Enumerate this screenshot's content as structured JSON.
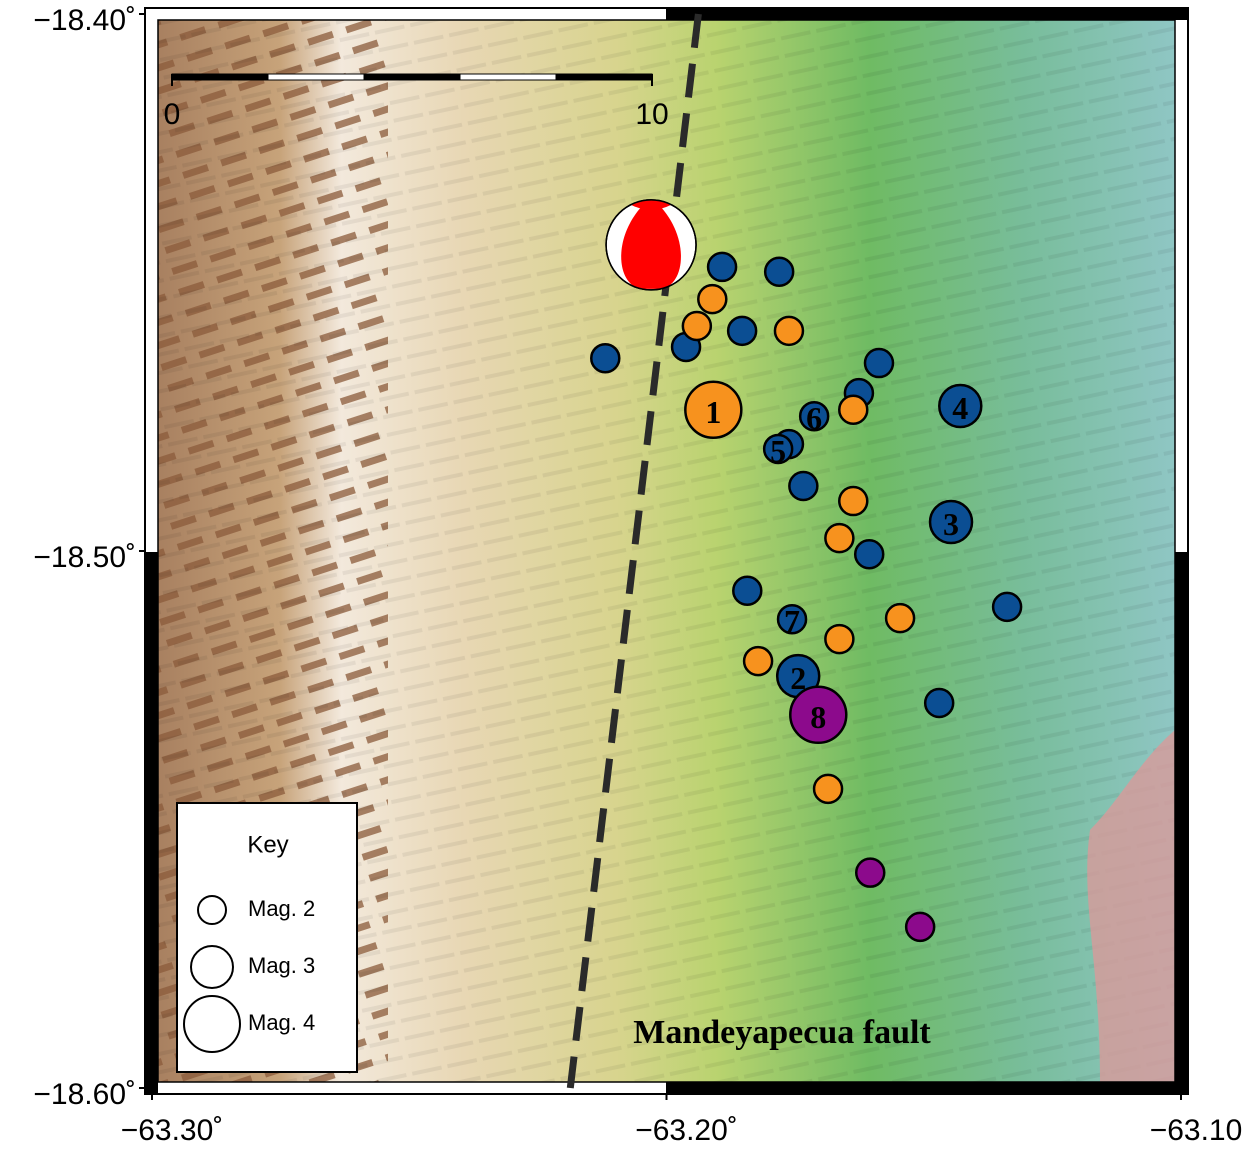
{
  "map": {
    "xlim": [
      -63.3,
      -63.1
    ],
    "ylim": [
      -18.6,
      -18.4
    ],
    "xticks": [
      {
        "value": -63.3,
        "label": "−63.30˚"
      },
      {
        "value": -63.2,
        "label": "−63.20˚"
      },
      {
        "value": -63.1,
        "label": "−63.10˚"
      }
    ],
    "yticks": [
      {
        "value": -18.4,
        "label": "−18.40˚"
      },
      {
        "value": -18.5,
        "label": "−18.50˚"
      },
      {
        "value": -18.6,
        "label": "−18.60˚"
      }
    ],
    "scale_bar": {
      "ticks": [
        0,
        10
      ]
    },
    "fault": {
      "label": "Mandeyapecua fault",
      "lon": [
        -63.1938,
        -63.2187
      ],
      "lat": [
        -18.4,
        -18.6
      ]
    },
    "focal_mechanism": {
      "lon": -63.203,
      "lat": -18.443
    },
    "legend": {
      "title": "Key",
      "entries": [
        {
          "label": "Mag. 2",
          "mag": 2
        },
        {
          "label": "Mag. 3",
          "mag": 3
        },
        {
          "label": "Mag. 4",
          "mag": 4
        }
      ]
    },
    "events": [
      {
        "lon": -63.1892,
        "lat": -18.4471,
        "mag": 2,
        "color": "#0b4e93"
      },
      {
        "lon": -63.1781,
        "lat": -18.448,
        "mag": 2,
        "color": "#0b4e93"
      },
      {
        "lon": -63.1853,
        "lat": -18.459,
        "mag": 2,
        "color": "#0b4e93"
      },
      {
        "lon": -63.2119,
        "lat": -18.4641,
        "mag": 2,
        "color": "#0b4e93"
      },
      {
        "lon": -63.1962,
        "lat": -18.462,
        "mag": 2,
        "color": "#0b4e93"
      },
      {
        "lon": -63.1587,
        "lat": -18.465,
        "mag": 2,
        "color": "#0b4e93"
      },
      {
        "lon": -63.1626,
        "lat": -18.4706,
        "mag": 2,
        "color": "#0b4e93"
      },
      {
        "lon": -63.1429,
        "lat": -18.473,
        "mag": 3,
        "color": "#0b4e93",
        "label": "4"
      },
      {
        "lon": -63.1713,
        "lat": -18.4749,
        "mag": 2,
        "color": "#0b4e93",
        "label": "6"
      },
      {
        "lon": -63.1762,
        "lat": -18.4801,
        "mag": 2,
        "color": "#0b4e93"
      },
      {
        "lon": -63.1783,
        "lat": -18.481,
        "mag": 2,
        "color": "#0b4e93",
        "label": "5"
      },
      {
        "lon": -63.1734,
        "lat": -18.4879,
        "mag": 2,
        "color": "#0b4e93"
      },
      {
        "lon": -63.1447,
        "lat": -18.4946,
        "mag": 3,
        "color": "#0b4e93",
        "label": "3"
      },
      {
        "lon": -63.1606,
        "lat": -18.5006,
        "mag": 2,
        "color": "#0b4e93"
      },
      {
        "lon": -63.1843,
        "lat": -18.5074,
        "mag": 2,
        "color": "#0b4e93"
      },
      {
        "lon": -63.1338,
        "lat": -18.5104,
        "mag": 2,
        "color": "#0b4e93"
      },
      {
        "lon": -63.1756,
        "lat": -18.5127,
        "mag": 2,
        "color": "#0b4e93",
        "label": "7"
      },
      {
        "lon": -63.1744,
        "lat": -18.5233,
        "mag": 3,
        "color": "#0b4e93",
        "label": "2"
      },
      {
        "lon": -63.147,
        "lat": -18.5283,
        "mag": 2,
        "color": "#0b4e93"
      },
      {
        "lon": -63.1911,
        "lat": -18.4531,
        "mag": 2,
        "color": "#f7921e"
      },
      {
        "lon": -63.1941,
        "lat": -18.4581,
        "mag": 2,
        "color": "#f7921e"
      },
      {
        "lon": -63.1762,
        "lat": -18.459,
        "mag": 2,
        "color": "#f7921e"
      },
      {
        "lon": -63.1637,
        "lat": -18.4737,
        "mag": 2,
        "color": "#f7921e"
      },
      {
        "lon": -63.1637,
        "lat": -18.4907,
        "mag": 2,
        "color": "#f7921e"
      },
      {
        "lon": -63.1664,
        "lat": -18.4976,
        "mag": 2,
        "color": "#f7921e"
      },
      {
        "lon": -63.1546,
        "lat": -18.5125,
        "mag": 2,
        "color": "#f7921e"
      },
      {
        "lon": -63.1664,
        "lat": -18.5164,
        "mag": 2,
        "color": "#f7921e"
      },
      {
        "lon": -63.1822,
        "lat": -18.5205,
        "mag": 2,
        "color": "#f7921e"
      },
      {
        "lon": -63.1686,
        "lat": -18.5443,
        "mag": 2,
        "color": "#f7921e"
      },
      {
        "lon": -63.1909,
        "lat": -18.4737,
        "mag": 4,
        "color": "#f7921e",
        "label": "1"
      },
      {
        "lon": -63.1705,
        "lat": -18.5305,
        "mag": 4,
        "color": "#8c0a8c",
        "label": "8"
      },
      {
        "lon": -63.1604,
        "lat": -18.5599,
        "mag": 2,
        "color": "#8c0a8c"
      },
      {
        "lon": -63.1507,
        "lat": -18.57,
        "mag": 2,
        "color": "#8c0a8c"
      }
    ]
  }
}
